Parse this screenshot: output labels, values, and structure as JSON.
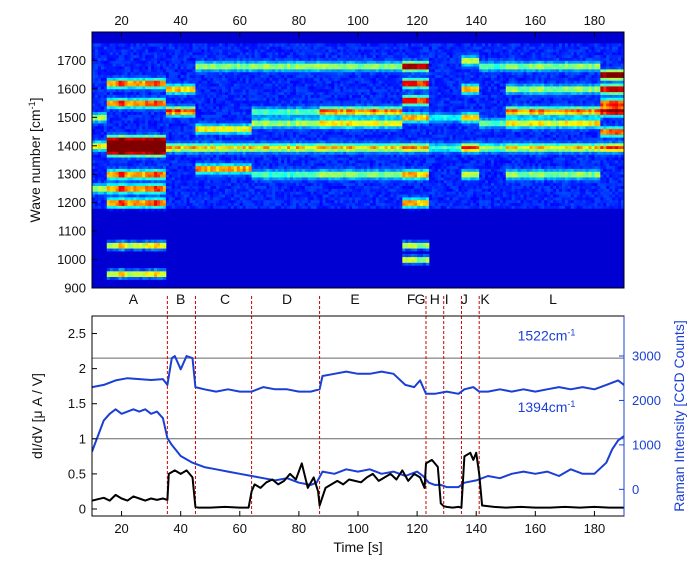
{
  "chart_data": [
    {
      "type": "heatmap",
      "ylabel": "Wave number [cm",
      "ylabel_sup": "-1",
      "ylabel_end": "]",
      "xlim": [
        10,
        190
      ],
      "ylim": [
        900,
        1800
      ],
      "x_ticks_top": [
        "20",
        "40",
        "60",
        "80",
        "100",
        "120",
        "140",
        "160",
        "180"
      ],
      "y_ticks": [
        "900",
        "1000",
        "1100",
        "1200",
        "1300",
        "1400",
        "1500",
        "1600",
        "1700"
      ],
      "colormap": [
        "#00008f",
        "#0000ff",
        "#00ffff",
        "#ffff00",
        "#ff0000",
        "#800000"
      ],
      "segment_labels": [
        {
          "label": "A",
          "x": 24
        },
        {
          "label": "B",
          "x": 40
        },
        {
          "label": "C",
          "x": 55
        },
        {
          "label": "D",
          "x": 76
        },
        {
          "label": "E",
          "x": 99
        },
        {
          "label": "F",
          "x": 118
        },
        {
          "label": "G",
          "x": 121
        },
        {
          "label": "H",
          "x": 126
        },
        {
          "label": "I",
          "x": 130
        },
        {
          "label": "J",
          "x": 136
        },
        {
          "label": "K",
          "x": 143
        },
        {
          "label": "L",
          "x": 166
        }
      ],
      "bands_by_segment": [
        {
          "range": [
            10,
            15
          ],
          "peaks": [
            1400,
            1250,
            1500
          ],
          "level": 0.45
        },
        {
          "range": [
            15,
            35
          ],
          "peaks": [
            1400,
            1420,
            1380,
            1550,
            1620,
            1250,
            1300,
            1200,
            1050,
            950
          ],
          "level": 1.0
        },
        {
          "range": [
            35,
            45
          ],
          "peaks": [
            1522,
            1394,
            1600
          ],
          "level": 0.6
        },
        {
          "range": [
            45,
            64
          ],
          "peaks": [
            1320,
            1460,
            1394,
            1680
          ],
          "level": 0.55
        },
        {
          "range": [
            64,
            87
          ],
          "peaks": [
            1394,
            1480,
            1680,
            1520,
            1300
          ],
          "level": 0.45
        },
        {
          "range": [
            87,
            115
          ],
          "peaks": [
            1522,
            1394,
            1480,
            1680,
            1300
          ],
          "level": 0.55
        },
        {
          "range": [
            115,
            124
          ],
          "peaks": [
            1680,
            1620,
            1560,
            1500,
            1394,
            1300,
            1200,
            1050,
            1000
          ],
          "level": 0.8
        },
        {
          "range": [
            124,
            135
          ],
          "peaks": [
            1394,
            1500
          ],
          "level": 0.25
        },
        {
          "range": [
            135,
            141
          ],
          "peaks": [
            1394,
            1500,
            1600,
            1300,
            1700
          ],
          "level": 0.65
        },
        {
          "range": [
            141,
            150
          ],
          "peaks": [
            1394,
            1480,
            1680
          ],
          "level": 0.35
        },
        {
          "range": [
            150,
            182
          ],
          "peaks": [
            1522,
            1480,
            1394,
            1600,
            1680,
            1300
          ],
          "level": 0.55
        },
        {
          "range": [
            182,
            190
          ],
          "peaks": [
            1650,
            1600,
            1522,
            1394,
            1450,
            1550
          ],
          "level": 0.95
        }
      ]
    },
    {
      "type": "line",
      "xlabel": "Time [s]",
      "ylabel_left": "dI/dV [μ A / V]",
      "ylabel_right": "Raman Intensity [CCD Counts]",
      "xlim": [
        10,
        190
      ],
      "ylim_left": [
        -0.1,
        2.75
      ],
      "ylim_right": [
        -600,
        3900
      ],
      "x_ticks": [
        "20",
        "40",
        "60",
        "80",
        "100",
        "120",
        "140",
        "160",
        "180"
      ],
      "y_ticks_left": [
        "0",
        "0.5",
        "1",
        "1.5",
        "2",
        "2.5"
      ],
      "y_ticks_right": [
        "0",
        "1000",
        "2000",
        "3000"
      ],
      "hlines_left": [
        1,
        2.15
      ],
      "segment_boundaries": [
        35.5,
        45,
        64,
        87,
        123,
        129,
        135,
        141
      ],
      "annotations": [
        {
          "text": "1522cm",
          "sup": "-1",
          "x": 154,
          "y": 2.4
        },
        {
          "text": "1394cm",
          "sup": "-1",
          "x": 154,
          "y": 1.38
        }
      ],
      "series": [
        {
          "name": "1522cm-1",
          "color": "#1a3fd6",
          "x": [
            10,
            14,
            18,
            22,
            26,
            30,
            34,
            35.5,
            37,
            38,
            40,
            42,
            44,
            45,
            48,
            52,
            56,
            60,
            64,
            66,
            68,
            72,
            76,
            80,
            84,
            87,
            88,
            92,
            96,
            100,
            104,
            108,
            112,
            116,
            119,
            121,
            123,
            124,
            126,
            130,
            134,
            136,
            139,
            141,
            144,
            148,
            152,
            156,
            160,
            164,
            168,
            172,
            176,
            180,
            184,
            186,
            188,
            190
          ],
          "y": [
            2300,
            2350,
            2450,
            2500,
            2480,
            2460,
            2480,
            2350,
            2950,
            3000,
            2700,
            3000,
            2950,
            2300,
            2250,
            2200,
            2250,
            2200,
            2200,
            2250,
            2300,
            2250,
            2250,
            2200,
            2200,
            2250,
            2550,
            2600,
            2650,
            2600,
            2600,
            2650,
            2600,
            2350,
            2300,
            2450,
            2150,
            2150,
            2150,
            2200,
            2150,
            2250,
            2300,
            2200,
            2200,
            2250,
            2200,
            2250,
            2200,
            2250,
            2300,
            2250,
            2300,
            2250,
            2350,
            2400,
            2450,
            2350
          ]
        },
        {
          "name": "1394cm-1",
          "color": "#1a3fd6",
          "x": [
            10,
            12,
            14,
            16,
            18,
            20,
            22,
            24,
            26,
            28,
            30,
            32,
            34,
            35.5,
            37,
            40,
            44,
            48,
            52,
            56,
            60,
            64,
            68,
            72,
            76,
            80,
            84,
            86,
            88,
            92,
            96,
            100,
            104,
            108,
            112,
            116,
            120,
            122,
            124,
            126,
            128,
            130,
            134,
            136,
            140,
            144,
            148,
            152,
            156,
            160,
            164,
            168,
            172,
            176,
            180,
            184,
            186,
            188,
            190
          ],
          "y": [
            850,
            1200,
            1550,
            1700,
            1800,
            1700,
            1750,
            1800,
            1750,
            1800,
            1700,
            1750,
            1600,
            1150,
            1000,
            750,
            600,
            500,
            450,
            400,
            350,
            300,
            250,
            200,
            250,
            150,
            100,
            150,
            400,
            350,
            450,
            400,
            450,
            350,
            400,
            300,
            400,
            300,
            150,
            100,
            100,
            50,
            50,
            150,
            200,
            300,
            250,
            350,
            400,
            350,
            400,
            300,
            450,
            350,
            350,
            600,
            900,
            1100,
            1200
          ]
        },
        {
          "name": "dI/dV",
          "color": "#000000",
          "x": [
            10,
            12,
            14,
            16,
            18,
            20,
            22,
            24,
            26,
            28,
            30,
            32,
            34,
            35.5,
            36,
            38,
            40,
            42,
            44,
            45,
            46,
            50,
            55,
            60,
            63,
            64,
            65,
            67,
            69,
            71,
            73,
            75,
            77,
            79,
            81,
            83,
            85,
            86.5,
            87,
            89,
            91,
            93,
            95,
            97,
            99,
            101,
            103,
            105,
            107,
            109,
            111,
            113,
            115,
            117,
            119,
            121,
            122.5,
            123,
            125,
            127,
            128,
            129,
            130,
            132,
            134,
            135,
            136,
            138,
            139,
            140,
            141,
            142,
            146,
            150,
            155,
            160,
            165,
            170,
            175,
            180,
            185,
            190
          ],
          "y": [
            0.12,
            0.14,
            0.16,
            0.12,
            0.2,
            0.15,
            0.12,
            0.18,
            0.15,
            0.12,
            0.15,
            0.13,
            0.15,
            0.13,
            0.5,
            0.55,
            0.5,
            0.55,
            0.45,
            0.03,
            0.02,
            0.02,
            0.03,
            0.02,
            0.02,
            0.25,
            0.35,
            0.3,
            0.38,
            0.42,
            0.35,
            0.4,
            0.5,
            0.42,
            0.65,
            0.3,
            0.45,
            0.25,
            0.05,
            0.3,
            0.35,
            0.4,
            0.35,
            0.42,
            0.4,
            0.38,
            0.45,
            0.5,
            0.4,
            0.45,
            0.5,
            0.42,
            0.55,
            0.4,
            0.5,
            0.45,
            0.3,
            0.65,
            0.7,
            0.6,
            0.08,
            0.04,
            0.03,
            0.02,
            0.03,
            0.02,
            0.75,
            0.8,
            0.7,
            0.8,
            0.5,
            0.05,
            0.03,
            0.02,
            0.03,
            0.02,
            0.02,
            0.03,
            0.02,
            0.03,
            0.02,
            0.02
          ]
        }
      ]
    }
  ]
}
